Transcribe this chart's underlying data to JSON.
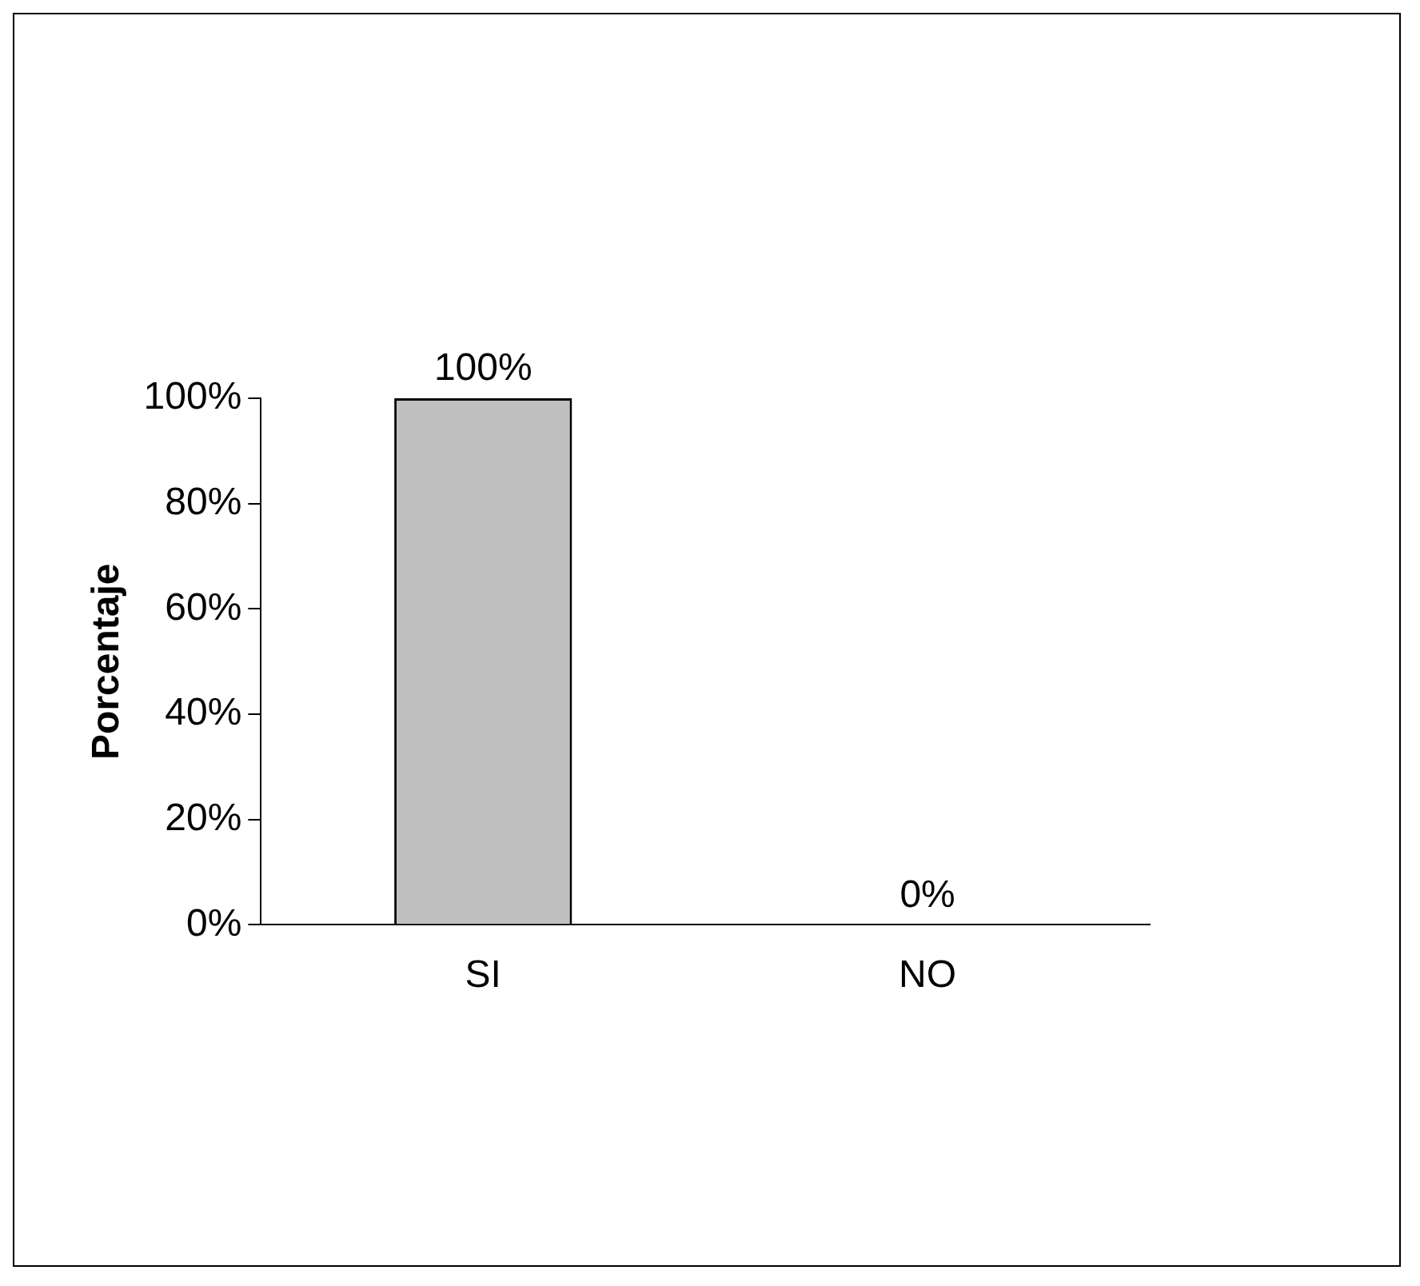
{
  "chart_data": {
    "type": "bar",
    "ylabel": "Porcentaje",
    "categories": [
      "SI",
      "NO"
    ],
    "values": [
      100,
      0
    ],
    "color": "#c0c0c0",
    "value_labels": [
      "100%",
      "0%"
    ],
    "ylim": [
      0,
      100
    ],
    "yticks": [
      {
        "value": 0,
        "label": "0%"
      },
      {
        "value": 20,
        "label": "20%"
      },
      {
        "value": 40,
        "label": "40%"
      },
      {
        "value": 60,
        "label": "60%"
      },
      {
        "value": 80,
        "label": "80%"
      },
      {
        "value": 100,
        "label": "100%"
      }
    ],
    "grid": false,
    "legend": false
  }
}
